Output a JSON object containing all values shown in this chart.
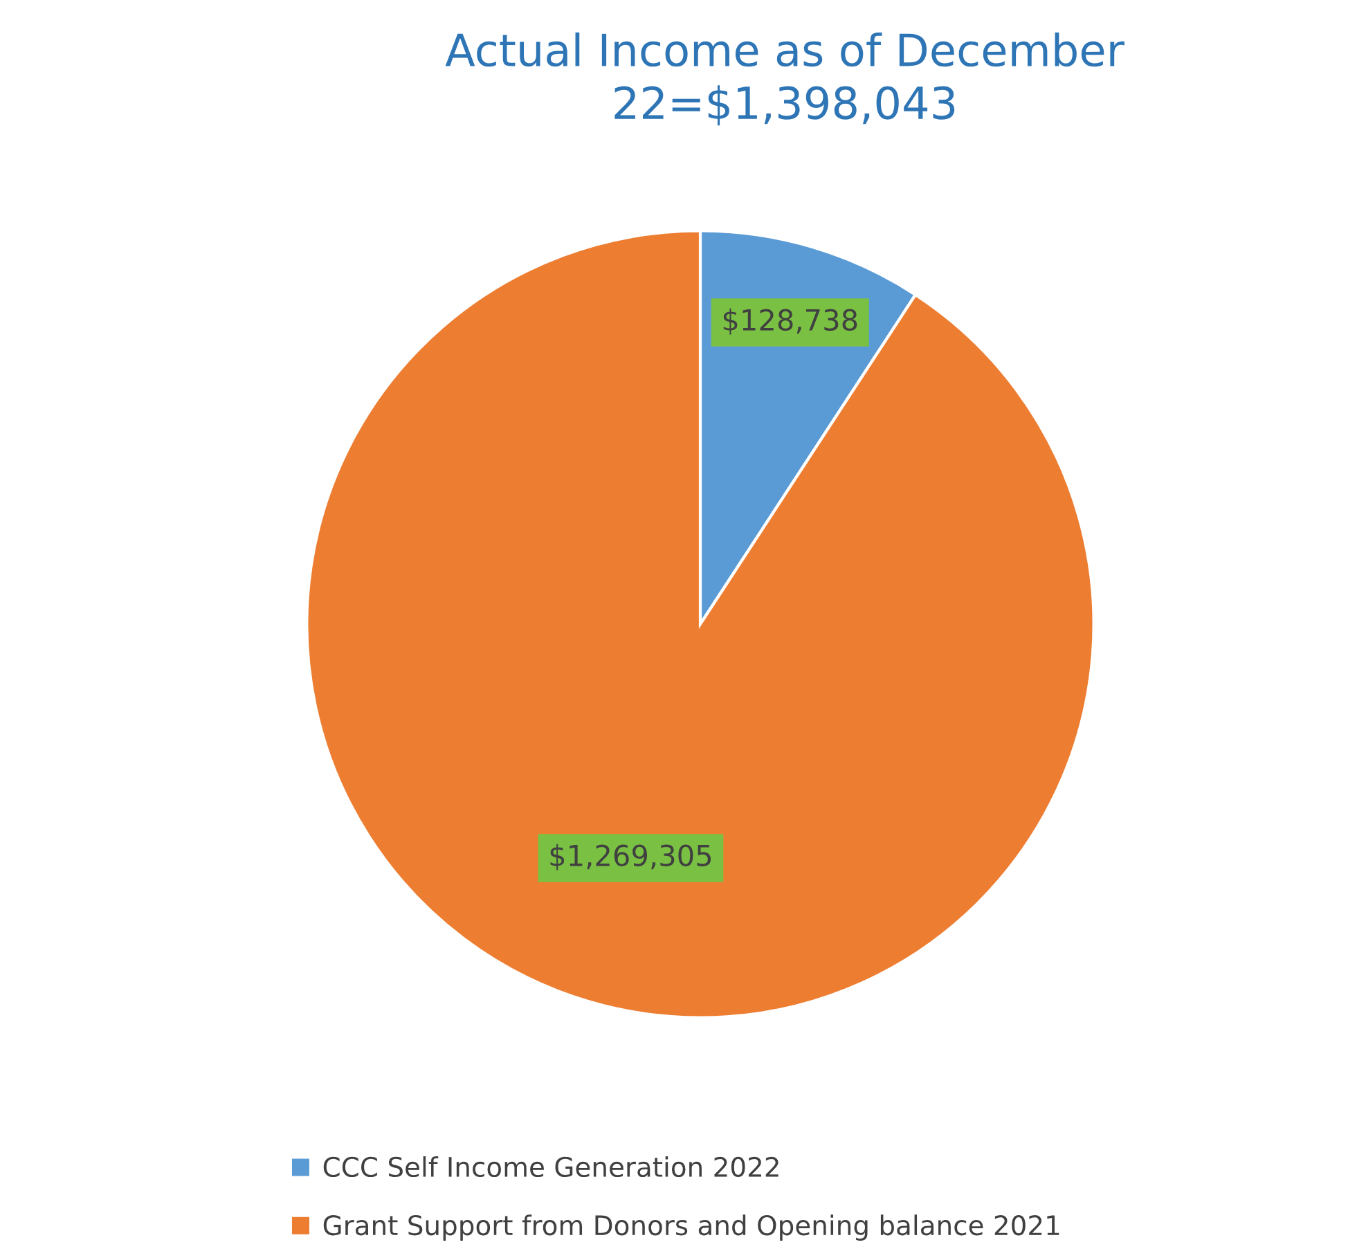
{
  "chart_data": {
    "type": "pie",
    "title": "Actual Income as of December\n22=$1,398,043",
    "categories": [
      "CCC Self Income Generation 2022",
      "Grant Support from Donors and Opening balance 2021"
    ],
    "values": [
      128738,
      1269305
    ],
    "colors": [
      "#5b9bd5",
      "#ed7d31"
    ],
    "value_labels": [
      "$128,738",
      "$1,269,305"
    ],
    "legend": "bottom"
  }
}
